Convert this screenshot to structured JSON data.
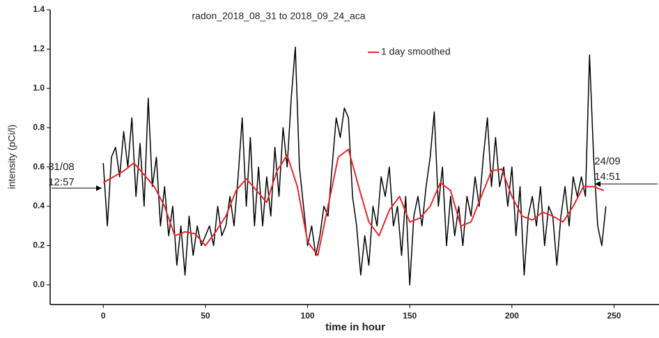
{
  "chart_data": {
    "type": "line",
    "title": "radon_2018_08_31 to 2018_09_24_aca",
    "x_label": "time in hour",
    "y_label": "intensity (pCi/l)",
    "annotations": [
      [
        "31/08",
        "12:57"
      ],
      [
        "24/09",
        "14:51"
      ]
    ],
    "xlim": [
      -26,
      272
    ],
    "xticks": [
      0,
      50,
      100,
      150,
      200,
      250
    ],
    "ylim": [
      -0.1,
      1.4
    ],
    "yticks": [
      {
        "value": 0,
        "label": "0.0"
      },
      0.2,
      0.4,
      0.6,
      0.8,
      {
        "value": 1,
        "label": "1.0"
      },
      1.2,
      1.4
    ],
    "legend": "top-right",
    "series": [
      {
        "color": "#000000",
        "x": [
          0,
          2,
          4,
          6,
          8,
          10,
          12,
          14,
          16,
          18,
          20,
          22,
          24,
          26,
          28,
          30,
          32,
          34,
          36,
          38,
          40,
          42,
          44,
          46,
          48,
          50,
          52,
          54,
          56,
          58,
          60,
          62,
          64,
          66,
          68,
          70,
          72,
          74,
          76,
          78,
          80,
          82,
          84,
          86,
          88,
          90,
          92,
          94,
          96,
          98,
          100,
          102,
          104,
          106,
          108,
          110,
          112,
          114,
          116,
          118,
          120,
          122,
          124,
          126,
          128,
          130,
          132,
          134,
          136,
          138,
          140,
          142,
          144,
          146,
          148,
          150,
          152,
          154,
          156,
          158,
          160,
          162,
          164,
          166,
          168,
          170,
          172,
          174,
          176,
          178,
          180,
          182,
          184,
          186,
          188,
          190,
          192,
          194,
          196,
          198,
          200,
          202,
          204,
          206,
          208,
          210,
          212,
          214,
          216,
          218,
          220,
          222,
          224,
          226,
          228,
          230,
          232,
          234,
          236,
          238,
          240,
          242,
          244,
          246
        ],
        "values": [
          0.62,
          0.3,
          0.65,
          0.7,
          0.55,
          0.78,
          0.6,
          0.85,
          0.45,
          0.72,
          0.4,
          0.95,
          0.5,
          0.65,
          0.3,
          0.5,
          0.25,
          0.4,
          0.1,
          0.3,
          0.05,
          0.35,
          0.15,
          0.3,
          0.2,
          0.25,
          0.3,
          0.2,
          0.4,
          0.25,
          0.3,
          0.45,
          0.3,
          0.55,
          0.85,
          0.4,
          0.75,
          0.3,
          0.6,
          0.3,
          0.55,
          0.35,
          0.7,
          0.45,
          0.8,
          0.6,
          0.95,
          1.21,
          0.6,
          0.4,
          0.2,
          0.3,
          0.15,
          0.25,
          0.4,
          0.35,
          0.6,
          0.85,
          0.75,
          0.9,
          0.85,
          0.45,
          0.3,
          0.05,
          0.25,
          0.1,
          0.4,
          0.3,
          0.55,
          0.45,
          0.6,
          0.3,
          0.4,
          0.15,
          0.45,
          0.0,
          0.35,
          0.45,
          0.3,
          0.5,
          0.65,
          0.88,
          0.4,
          0.6,
          0.2,
          0.45,
          0.25,
          0.4,
          0.2,
          0.45,
          0.35,
          0.55,
          0.4,
          0.65,
          0.85,
          0.5,
          0.75,
          0.5,
          0.6,
          0.4,
          0.6,
          0.25,
          0.5,
          0.05,
          0.35,
          0.45,
          0.3,
          0.5,
          0.2,
          0.4,
          0.35,
          0.1,
          0.35,
          0.5,
          0.3,
          0.55,
          0.45,
          0.55,
          0.45,
          1.17,
          0.65,
          0.3,
          0.2,
          0.4
        ]
      },
      {
        "name": "1 day smoothed",
        "color": "#e8262a",
        "x": [
          0,
          5,
          10,
          15,
          20,
          25,
          30,
          35,
          40,
          45,
          50,
          55,
          60,
          65,
          70,
          75,
          80,
          85,
          90,
          95,
          100,
          105,
          110,
          115,
          120,
          125,
          130,
          135,
          140,
          145,
          150,
          155,
          160,
          165,
          170,
          175,
          180,
          185,
          190,
          195,
          200,
          205,
          210,
          215,
          220,
          225,
          230,
          235,
          240,
          245
        ],
        "values": [
          0.52,
          0.55,
          0.58,
          0.62,
          0.56,
          0.5,
          0.4,
          0.25,
          0.27,
          0.26,
          0.2,
          0.27,
          0.35,
          0.48,
          0.54,
          0.48,
          0.42,
          0.58,
          0.66,
          0.5,
          0.22,
          0.15,
          0.4,
          0.65,
          0.69,
          0.5,
          0.32,
          0.25,
          0.38,
          0.45,
          0.32,
          0.34,
          0.4,
          0.52,
          0.48,
          0.3,
          0.32,
          0.45,
          0.58,
          0.59,
          0.45,
          0.35,
          0.33,
          0.37,
          0.35,
          0.32,
          0.4,
          0.5,
          0.5,
          0.48
        ]
      }
    ]
  }
}
